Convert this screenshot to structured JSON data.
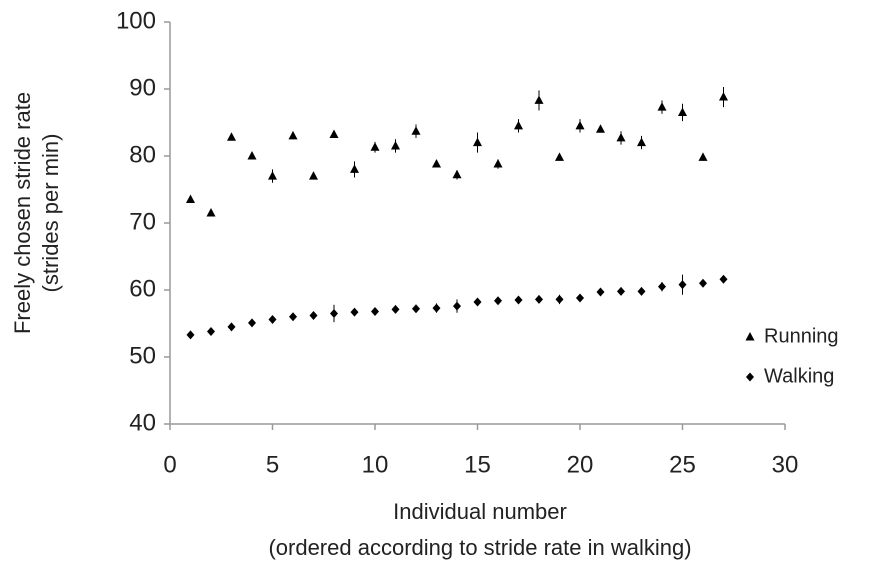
{
  "chart_data": {
    "type": "scatter",
    "x_label": [
      "Individual number",
      "(ordered according to stride rate in walking)"
    ],
    "y_label": [
      "Freely chosen stride rate",
      "(strides per min)"
    ],
    "x": [
      1,
      2,
      3,
      4,
      5,
      6,
      7,
      8,
      9,
      10,
      11,
      12,
      13,
      14,
      15,
      16,
      17,
      18,
      19,
      20,
      21,
      22,
      23,
      24,
      25,
      26,
      27
    ],
    "series": [
      {
        "name": "Running",
        "marker": "triangle",
        "color": "#000000",
        "values": [
          73.5,
          71.5,
          82.8,
          80,
          77,
          83,
          77,
          83.2,
          78,
          81.3,
          81.5,
          83.7,
          78.8,
          77.2,
          82,
          78.8,
          84.5,
          88.3,
          79.8,
          84.5,
          84,
          82.7,
          82,
          87.3,
          86.5,
          79.8,
          88.8
        ],
        "errors": [
          0.3,
          0.3,
          0.3,
          0.3,
          1,
          0.3,
          0.3,
          0.3,
          1.2,
          0.8,
          1,
          1,
          0.3,
          0.7,
          1.5,
          0.7,
          1,
          1.5,
          0.3,
          1,
          0.5,
          1,
          1,
          1,
          1.3,
          0.5,
          1.5
        ]
      },
      {
        "name": "Walking",
        "marker": "diamond",
        "color": "#000000",
        "values": [
          53.3,
          53.8,
          54.5,
          55.1,
          55.6,
          56,
          56.2,
          56.5,
          56.7,
          56.8,
          57.1,
          57.2,
          57.3,
          57.6,
          58.2,
          58.4,
          58.5,
          58.6,
          58.6,
          58.8,
          59.7,
          59.8,
          59.8,
          60.5,
          60.8,
          61,
          61.6
        ],
        "errors": [
          0.3,
          0.3,
          0.3,
          0.3,
          0.3,
          0.3,
          0.3,
          1.3,
          0.3,
          0.3,
          0.3,
          0.3,
          0.7,
          1,
          0.3,
          0.3,
          0.3,
          0.3,
          0.7,
          0.3,
          0.3,
          0.3,
          0.3,
          0.7,
          1.5,
          0.3,
          0.3
        ]
      }
    ],
    "xlim": [
      0,
      30
    ],
    "xticks": [
      0,
      5,
      10,
      15,
      20,
      25,
      30
    ],
    "ylim": [
      40,
      100
    ],
    "yticks": [
      40,
      50,
      60,
      70,
      80,
      90,
      100
    ],
    "grid": false,
    "legend": "right"
  }
}
